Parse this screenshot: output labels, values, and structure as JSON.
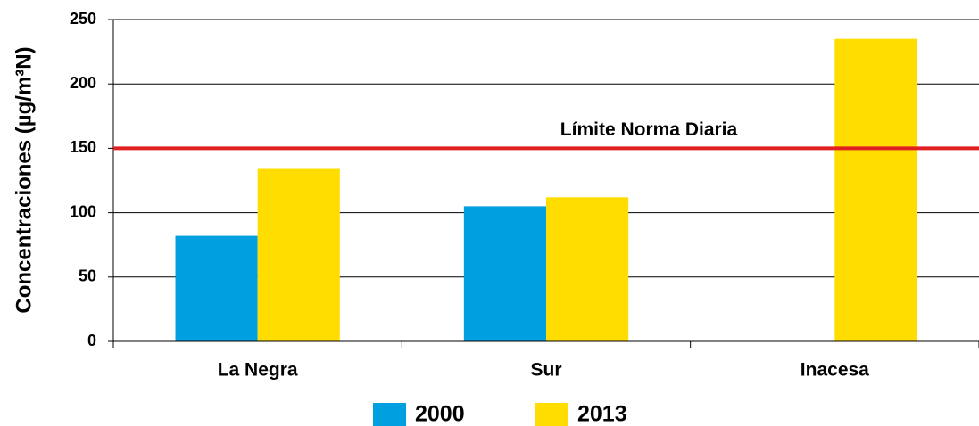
{
  "chart_data": {
    "type": "bar",
    "y_label": "Concentraciones (µg/m³N)",
    "categories": [
      "La Negra",
      "Sur",
      "Inacesa"
    ],
    "series": [
      {
        "name": "2000",
        "color": "#00a0e0",
        "values": [
          82,
          105,
          null
        ]
      },
      {
        "name": "2013",
        "color": "#ffdd00",
        "values": [
          134,
          112,
          235
        ]
      }
    ],
    "ylim": [
      0,
      250
    ],
    "yticks": [
      0,
      50,
      100,
      150,
      200,
      250
    ],
    "grid": true,
    "reference_line": {
      "value": 150,
      "label": "Límite Norma Diaria",
      "color": "#e02020"
    },
    "legend": "bottom"
  }
}
